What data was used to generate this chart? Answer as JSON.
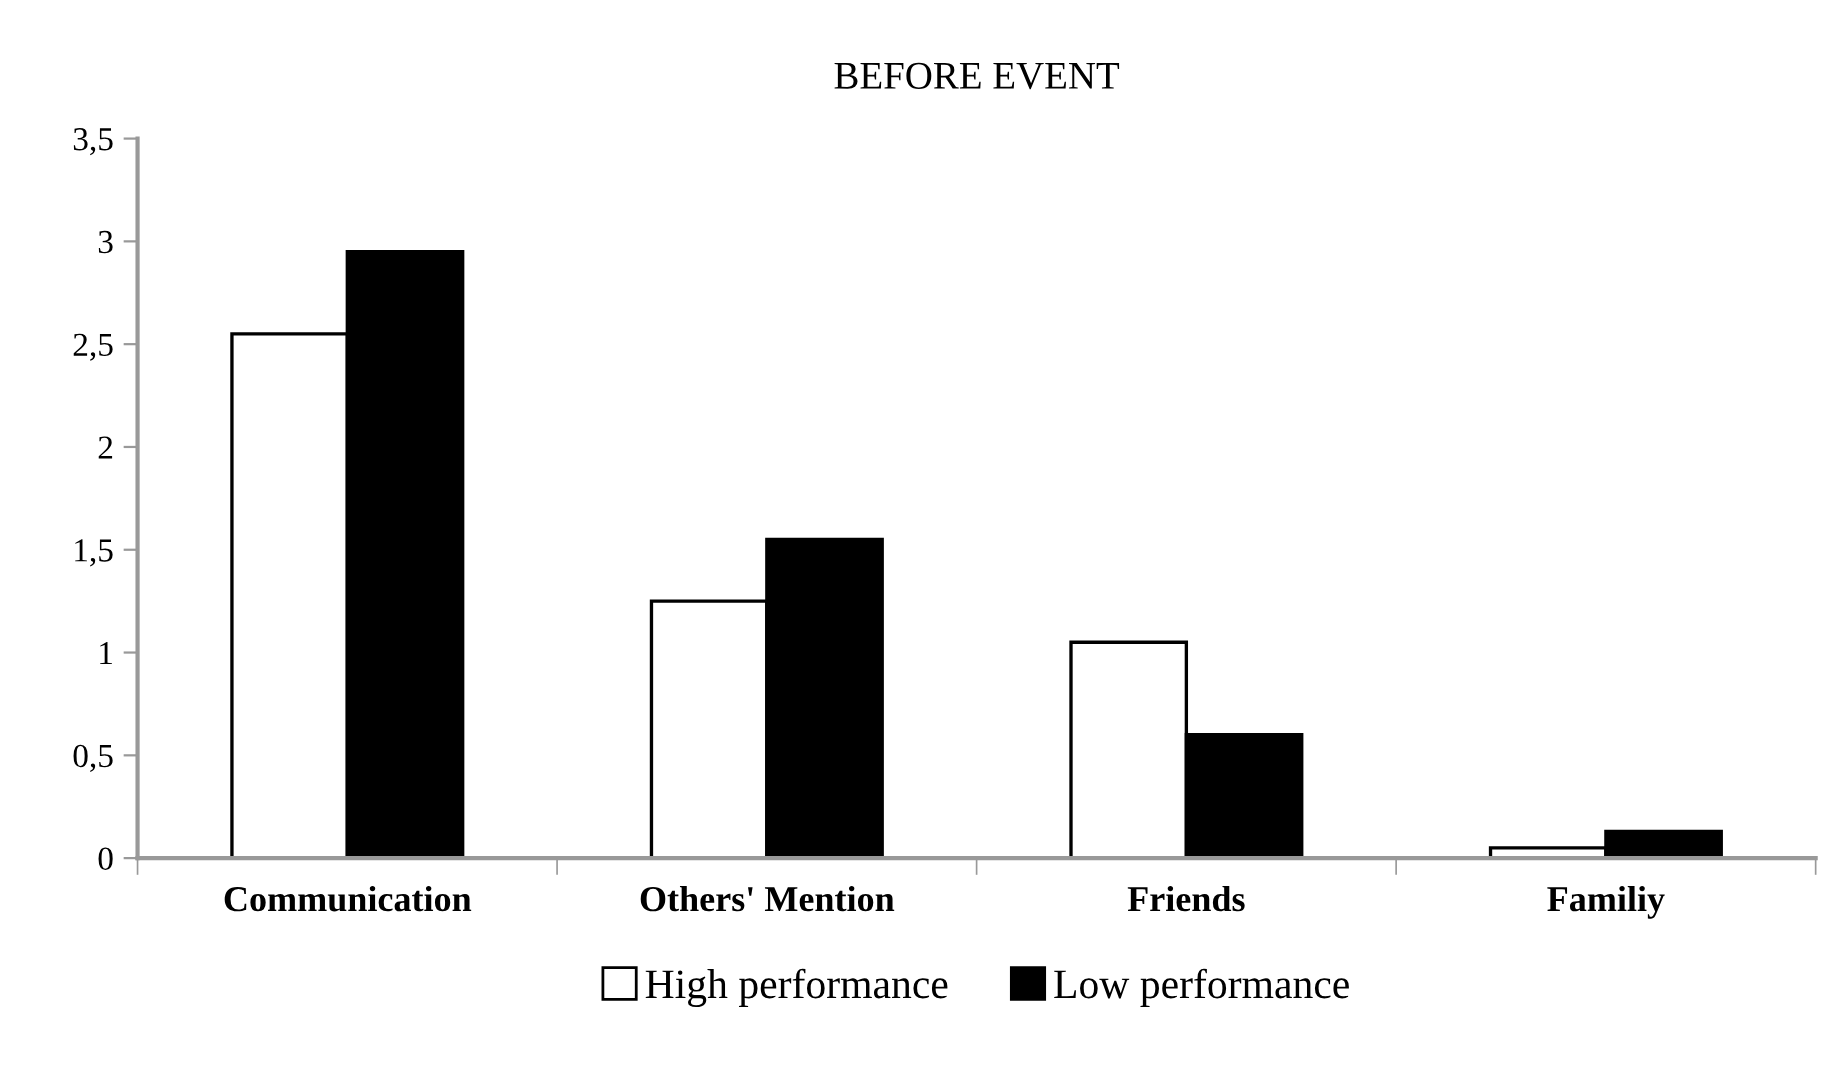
{
  "chart_data": {
    "type": "bar",
    "title": "BEFORE EVENT",
    "categories": [
      "Communication",
      "Others' Mention",
      "Friends",
      "Familiy"
    ],
    "series": [
      {
        "name": "High performance",
        "color": "#ffffff",
        "values": [
          2.55,
          1.25,
          1.05,
          0.05
        ]
      },
      {
        "name": "Low performance",
        "color": "#000000",
        "values": [
          2.95,
          1.55,
          0.6,
          0.13
        ]
      }
    ],
    "ylim": [
      0,
      3.5
    ],
    "yticks": [
      {
        "value": 0,
        "label": "0"
      },
      {
        "value": 0.5,
        "label": "0,5"
      },
      {
        "value": 1,
        "label": "1"
      },
      {
        "value": 1.5,
        "label": "1,5"
      },
      {
        "value": 2,
        "label": "2"
      },
      {
        "value": 2.5,
        "label": "2,5"
      },
      {
        "value": 3,
        "label": "3"
      },
      {
        "value": 3.5,
        "label": "3,5"
      }
    ],
    "grid": false,
    "legend": "bottom"
  }
}
